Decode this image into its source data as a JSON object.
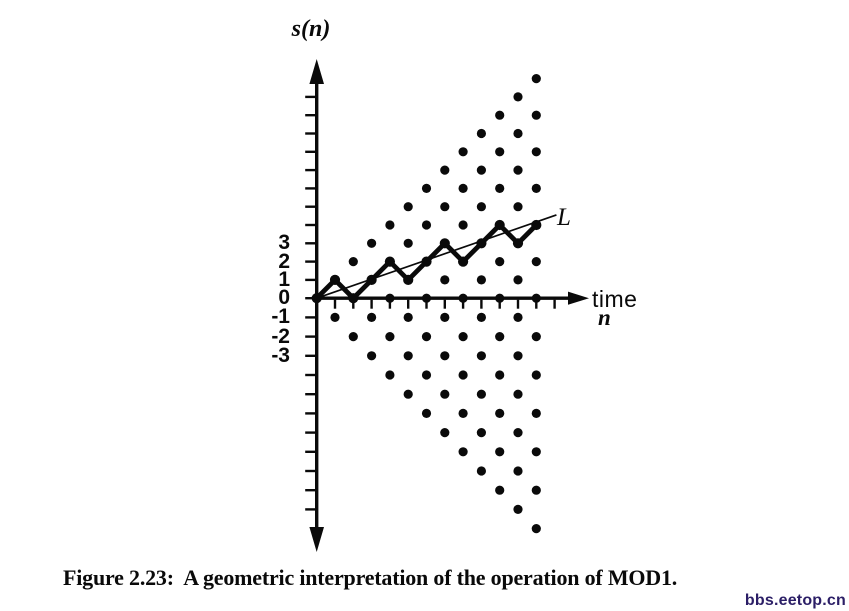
{
  "figure": {
    "y_axis_label": "s(n)",
    "x_axis_label_line1": "time",
    "x_axis_label_line2": "n",
    "line_label": "L",
    "y_tick_labels": [
      {
        "value": 3,
        "label": "3"
      },
      {
        "value": 2,
        "label": "2"
      },
      {
        "value": 1,
        "label": "1"
      },
      {
        "value": 0,
        "label": "0"
      },
      {
        "value": -1,
        "label": "-1"
      },
      {
        "value": -2,
        "label": "-2"
      },
      {
        "value": -3,
        "label": "-3"
      }
    ]
  },
  "chart_data": {
    "type": "scatter",
    "title": "Geometric interpretation of the operation of MOD1",
    "xlabel": "time n",
    "ylabel": "s(n)",
    "x_range": [
      0,
      13
    ],
    "y_range": [
      -12,
      12
    ],
    "x_ticks": [
      1,
      2,
      3,
      4,
      5,
      6,
      7,
      8,
      9,
      10,
      11,
      12,
      13
    ],
    "y_ticks_range": [
      -11,
      11
    ],
    "labeled_y_ticks": [
      3,
      2,
      1,
      0,
      -1,
      -2,
      -3
    ],
    "lattice_points_rule": "dot at every (n,s) with 0<=n<=12, -n<=s<=n, n+s even",
    "lattice_points": [
      [
        0,
        0
      ],
      [
        1,
        -1
      ],
      [
        1,
        1
      ],
      [
        2,
        -2
      ],
      [
        2,
        0
      ],
      [
        2,
        2
      ],
      [
        3,
        -3
      ],
      [
        3,
        -1
      ],
      [
        3,
        1
      ],
      [
        3,
        3
      ],
      [
        4,
        -4
      ],
      [
        4,
        -2
      ],
      [
        4,
        0
      ],
      [
        4,
        2
      ],
      [
        4,
        4
      ],
      [
        5,
        -5
      ],
      [
        5,
        -3
      ],
      [
        5,
        -1
      ],
      [
        5,
        1
      ],
      [
        5,
        3
      ],
      [
        5,
        5
      ],
      [
        6,
        -6
      ],
      [
        6,
        -4
      ],
      [
        6,
        -2
      ],
      [
        6,
        0
      ],
      [
        6,
        2
      ],
      [
        6,
        4
      ],
      [
        6,
        6
      ],
      [
        7,
        -7
      ],
      [
        7,
        -5
      ],
      [
        7,
        -3
      ],
      [
        7,
        -1
      ],
      [
        7,
        1
      ],
      [
        7,
        3
      ],
      [
        7,
        5
      ],
      [
        7,
        7
      ],
      [
        8,
        -8
      ],
      [
        8,
        -6
      ],
      [
        8,
        -4
      ],
      [
        8,
        -2
      ],
      [
        8,
        0
      ],
      [
        8,
        2
      ],
      [
        8,
        4
      ],
      [
        8,
        6
      ],
      [
        8,
        8
      ],
      [
        9,
        -9
      ],
      [
        9,
        -7
      ],
      [
        9,
        -5
      ],
      [
        9,
        -3
      ],
      [
        9,
        -1
      ],
      [
        9,
        1
      ],
      [
        9,
        3
      ],
      [
        9,
        5
      ],
      [
        9,
        7
      ],
      [
        9,
        9
      ],
      [
        10,
        -10
      ],
      [
        10,
        -8
      ],
      [
        10,
        -6
      ],
      [
        10,
        -4
      ],
      [
        10,
        -2
      ],
      [
        10,
        0
      ],
      [
        10,
        2
      ],
      [
        10,
        4
      ],
      [
        10,
        6
      ],
      [
        10,
        8
      ],
      [
        10,
        10
      ],
      [
        11,
        -11
      ],
      [
        11,
        -9
      ],
      [
        11,
        -7
      ],
      [
        11,
        -5
      ],
      [
        11,
        -3
      ],
      [
        11,
        -1
      ],
      [
        11,
        1
      ],
      [
        11,
        3
      ],
      [
        11,
        5
      ],
      [
        11,
        7
      ],
      [
        11,
        9
      ],
      [
        11,
        11
      ],
      [
        12,
        -12
      ],
      [
        12,
        -10
      ],
      [
        12,
        -8
      ],
      [
        12,
        -6
      ],
      [
        12,
        -4
      ],
      [
        12,
        -2
      ],
      [
        12,
        0
      ],
      [
        12,
        2
      ],
      [
        12,
        4
      ],
      [
        12,
        6
      ],
      [
        12,
        8
      ],
      [
        12,
        10
      ],
      [
        12,
        12
      ]
    ],
    "trajectory": {
      "x": [
        0,
        1,
        2,
        3,
        4,
        5,
        6,
        7,
        8,
        9,
        10,
        11,
        12
      ],
      "s": [
        0,
        1,
        0,
        1,
        2,
        1,
        2,
        3,
        2,
        3,
        4,
        3,
        4
      ]
    },
    "line_L": {
      "label": "L",
      "start": [
        0,
        0
      ],
      "end": [
        13.1,
        4.55
      ],
      "slope_approx": 0.35
    }
  },
  "caption": "Figure 2.23:  A geometric interpretation of the operation of MOD1.",
  "watermark": "bbs.eetop.cn",
  "colors": {
    "ink": "#0a0a0a",
    "watermark": "#2b1e66",
    "background": "#ffffff"
  }
}
